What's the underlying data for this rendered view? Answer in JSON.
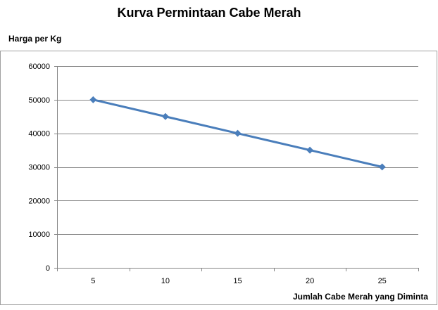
{
  "chart_data": {
    "type": "line",
    "title": "Kurva Permintaan Cabe Merah",
    "ylabel": "Harga per Kg",
    "xlabel": "Jumlah Cabe Merah yang Diminta",
    "categories": [
      "5",
      "10",
      "15",
      "20",
      "25"
    ],
    "series": [
      {
        "values": [
          50000,
          45000,
          40000,
          35000,
          30000
        ]
      }
    ],
    "ylim": [
      0,
      60000
    ],
    "yticks": [
      0,
      10000,
      20000,
      30000,
      40000,
      50000,
      60000
    ],
    "grid": true,
    "legend": "none",
    "colors": {
      "line": "#4a7ebb",
      "grid": "#868686",
      "border": "#a0a0a0"
    }
  }
}
